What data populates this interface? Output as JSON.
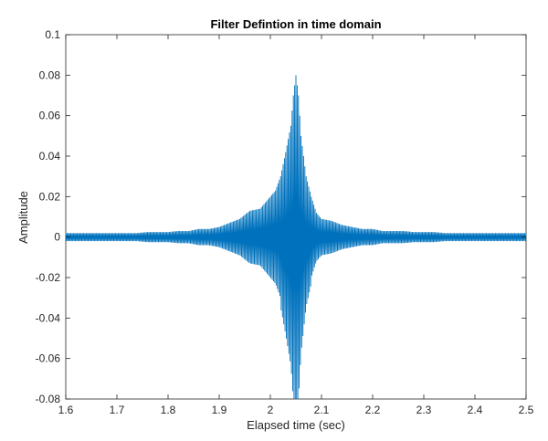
{
  "chart_data": {
    "type": "line",
    "title": "Filter Defintion in time domain",
    "xlabel": "Elapsed time (sec)",
    "ylabel": "Amplitude",
    "xlim": [
      1.6,
      2.5
    ],
    "ylim": [
      -0.08,
      0.1
    ],
    "xticks": [
      1.6,
      1.7,
      1.8,
      1.9,
      2.0,
      2.1,
      2.2,
      2.3,
      2.4,
      2.5
    ],
    "xtick_labels": [
      "1.6",
      "1.7",
      "1.8",
      "1.9",
      "2",
      "2.1",
      "2.2",
      "2.3",
      "2.4",
      "2.5"
    ],
    "yticks": [
      -0.08,
      -0.06,
      -0.04,
      -0.02,
      0,
      0.02,
      0.04,
      0.06,
      0.08,
      0.1
    ],
    "ytick_labels": [
      "-0.08",
      "-0.06",
      "-0.04",
      "-0.02",
      "0",
      "0.02",
      "0.04",
      "0.06",
      "0.08",
      "0.1"
    ],
    "grid": false,
    "series": [
      {
        "color": "#0072bd",
        "x": [
          1.6,
          1.62,
          1.64,
          1.66,
          1.68,
          1.7,
          1.72,
          1.74,
          1.76,
          1.78,
          1.8,
          1.82,
          1.84,
          1.86,
          1.88,
          1.9,
          1.92,
          1.94,
          1.96,
          1.98,
          2.0,
          2.01,
          2.02,
          2.03,
          2.04,
          2.045,
          2.05,
          2.055,
          2.06,
          2.07,
          2.08,
          2.09,
          2.1,
          2.12,
          2.14,
          2.16,
          2.18,
          2.2,
          2.22,
          2.24,
          2.26,
          2.28,
          2.3,
          2.32,
          2.34,
          2.36,
          2.38,
          2.4,
          2.42,
          2.44,
          2.46,
          2.48,
          2.5
        ],
        "y_envelope": [
          0.002,
          0.002,
          0.002,
          0.002,
          0.002,
          0.002,
          0.002,
          0.002,
          0.0025,
          0.0025,
          0.0025,
          0.003,
          0.003,
          0.004,
          0.004,
          0.005,
          0.007,
          0.009,
          0.013,
          0.014,
          0.02,
          0.023,
          0.03,
          0.042,
          0.055,
          0.07,
          0.08,
          0.07,
          0.05,
          0.03,
          0.02,
          0.012,
          0.009,
          0.008,
          0.006,
          0.005,
          0.004,
          0.004,
          0.003,
          0.003,
          0.003,
          0.0025,
          0.0025,
          0.0025,
          0.002,
          0.002,
          0.002,
          0.002,
          0.002,
          0.002,
          0.002,
          0.002,
          0.002
        ]
      }
    ]
  }
}
